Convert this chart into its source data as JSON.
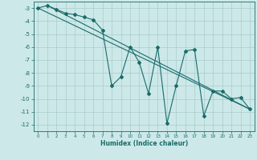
{
  "xlabel": "Humidex (Indice chaleur)",
  "xlim": [
    -0.5,
    23.5
  ],
  "ylim": [
    -12.5,
    -2.5
  ],
  "yticks": [
    -3,
    -4,
    -5,
    -6,
    -7,
    -8,
    -9,
    -10,
    -11,
    -12
  ],
  "xticks": [
    0,
    1,
    2,
    3,
    4,
    5,
    6,
    7,
    8,
    9,
    10,
    11,
    12,
    13,
    14,
    15,
    16,
    17,
    18,
    19,
    20,
    21,
    22,
    23
  ],
  "bg_color": "#cce8e8",
  "line_color": "#1a6b6b",
  "grid_color": "#aacccc",
  "data_zigzag": {
    "x": [
      0,
      1,
      2,
      3,
      4,
      5,
      6,
      7,
      8,
      9,
      10,
      11,
      12,
      13,
      14,
      15,
      16,
      17,
      18,
      19,
      20,
      21,
      22,
      23
    ],
    "y": [
      -3.0,
      -2.8,
      -3.1,
      -3.4,
      -3.5,
      -3.7,
      -3.9,
      -4.7,
      -9.0,
      -8.3,
      -6.0,
      -7.2,
      -9.6,
      -6.0,
      -11.9,
      -9.0,
      -6.3,
      -6.2,
      -11.3,
      -9.4,
      -9.4,
      -10.0,
      -9.9,
      -10.8
    ]
  },
  "trend_line1": {
    "x": [
      0,
      23
    ],
    "y": [
      -3.0,
      -10.8
    ]
  },
  "trend_line2": {
    "x": [
      1,
      23
    ],
    "y": [
      -2.8,
      -10.8
    ]
  }
}
